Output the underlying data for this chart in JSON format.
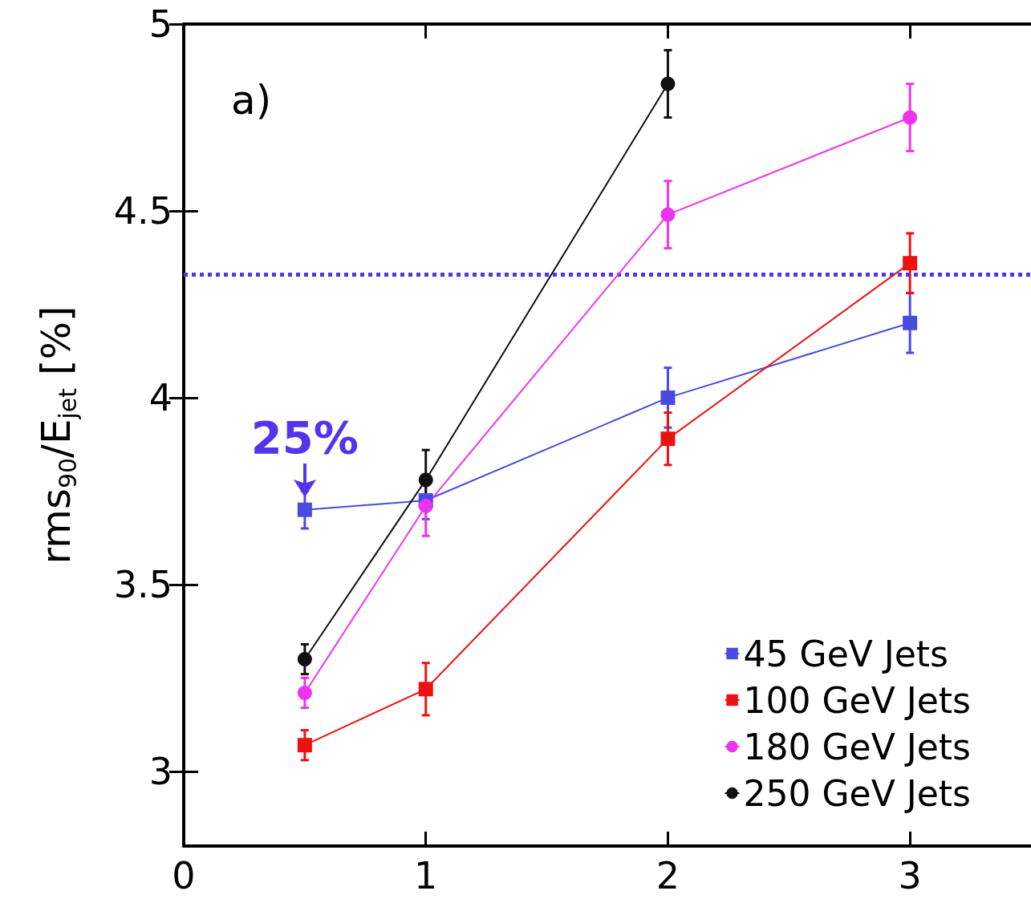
{
  "chart_data": {
    "type": "line",
    "ylabel": "rms$_{90}$/E$_{jet}$ [%]",
    "x": [
      0.5,
      1,
      2,
      3
    ],
    "xlim": [
      0,
      3.5
    ],
    "xticks": [
      0,
      1,
      2,
      3
    ],
    "ylim": [
      2.8,
      5
    ],
    "yticks": [
      3,
      3.5,
      4,
      4.5,
      5
    ],
    "series": [
      {
        "name": "45 GeV Jets",
        "color": "#4a4ae0",
        "marker": "square",
        "values": [
          3.7,
          3.725,
          4.0,
          4.2
        ],
        "errors": [
          0.05,
          0.05,
          0.08,
          0.08
        ]
      },
      {
        "name": "100 GeV Jets",
        "color": "#ee1111",
        "marker": "square",
        "values": [
          3.07,
          3.22,
          3.89,
          4.36
        ],
        "errors": [
          0.04,
          0.07,
          0.07,
          0.08
        ]
      },
      {
        "name": "180 GeV Jets",
        "color": "#ee33ee",
        "marker": "circle",
        "values": [
          3.21,
          3.71,
          4.49,
          4.75
        ],
        "errors": [
          0.04,
          0.08,
          0.09,
          0.09
        ]
      },
      {
        "name": "250 GeV Jets",
        "color": "#111111",
        "marker": "circle",
        "values": [
          3.3,
          3.78,
          4.84,
          null
        ],
        "errors": [
          0.04,
          0.08,
          0.09,
          null
        ]
      }
    ],
    "ref_lines": [
      {
        "axis": "y",
        "value": 4.33,
        "color": "#5533ee",
        "line_style": "dotted"
      }
    ],
    "annotations": [
      "a)",
      {
        "text": "25%",
        "x": 0.5,
        "y": 3.7
      }
    ],
    "legend": "bottom right",
    "grid": false
  }
}
